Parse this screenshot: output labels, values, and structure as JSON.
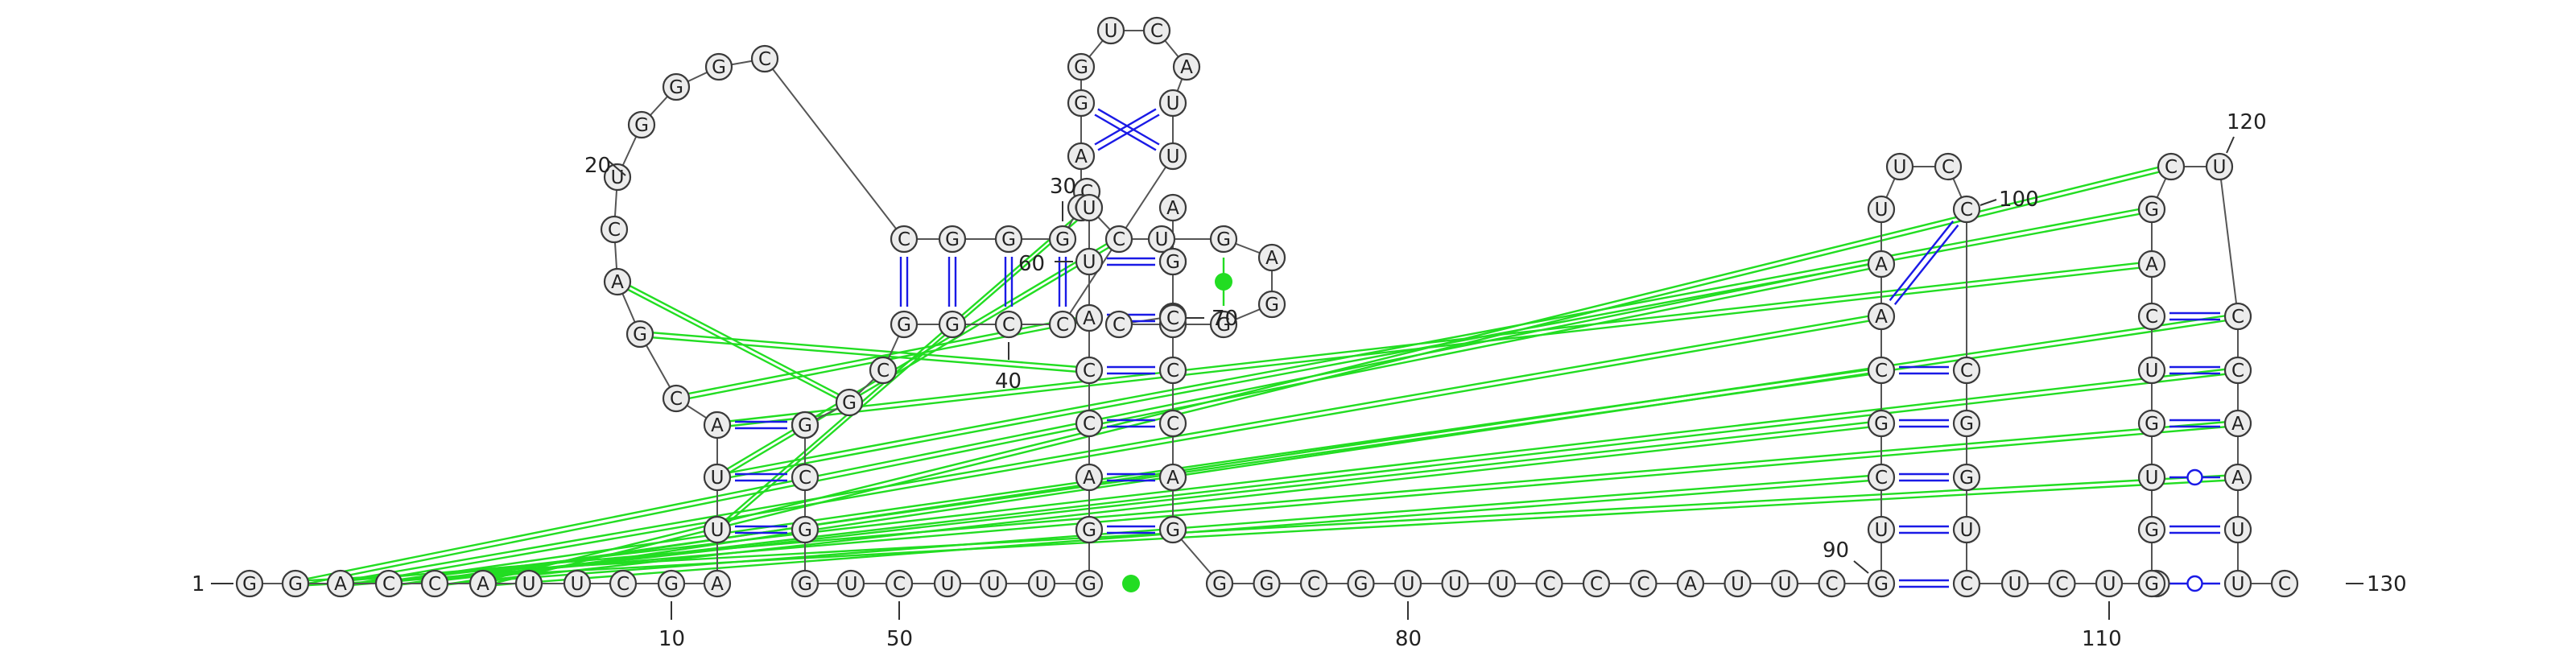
{
  "sequence": "GGACCAUUCGAUUACGACUGGGCCGGGCGAGGUCAUUCCGGCGCGCGGUCUUUGGACCAUUCUGAGGGCGAAGCCCAGGGCGUUUCCCAUUCGUCGCAAUUCCCGGUCUCUCGGUGUCAGCUCCAAUUC",
  "labels": [
    "1",
    "10",
    "20",
    "30",
    "40",
    "50",
    "60",
    "70",
    "80",
    "90",
    "100",
    "110",
    "120",
    "130"
  ],
  "colors": {
    "canonical_pair": "#1a1ae6",
    "pseudoknot_pair": "#22dd22",
    "backbone": "#555555",
    "nucleotide_fill": "#ececec"
  }
}
